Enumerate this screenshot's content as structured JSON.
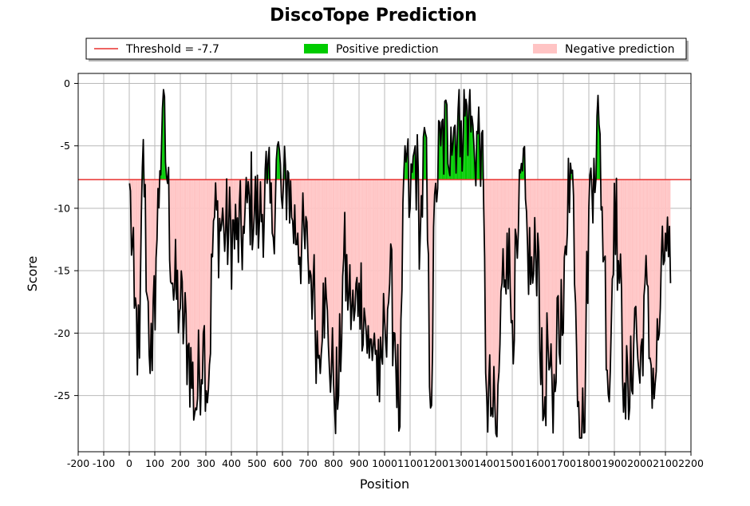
{
  "chart_data": {
    "type": "line",
    "title": "DiscoTope Prediction",
    "xlabel": "Position",
    "ylabel": "Score",
    "xlim": [
      -200,
      2200
    ],
    "ylim": [
      -29.5,
      0.8
    ],
    "xticks": [
      -200,
      -100,
      0,
      100,
      200,
      300,
      400,
      500,
      600,
      700,
      800,
      900,
      1000,
      1100,
      1200,
      1300,
      1400,
      1500,
      1600,
      1700,
      1800,
      1900,
      2000,
      2100,
      2200
    ],
    "yticks": [
      0,
      -5,
      -10,
      -15,
      -20,
      -25
    ],
    "threshold": -7.7,
    "grid": true,
    "legend_placement": "top",
    "legend": [
      {
        "label": "Threshold = -7.7",
        "kind": "line",
        "color": "#e8302f"
      },
      {
        "label": "Positive prediction",
        "kind": "patch",
        "color": "#00cc00"
      },
      {
        "label": "Negative prediction",
        "kind": "patch",
        "color": "#ffc4c4"
      }
    ],
    "x_start": 1,
    "x_end": 2120,
    "series": [
      {
        "line_color": "#000000",
        "keypoints": [
          [
            1,
            -8
          ],
          [
            20,
            -18
          ],
          [
            40,
            -22
          ],
          [
            55,
            -4.5
          ],
          [
            70,
            -17
          ],
          [
            90,
            -23
          ],
          [
            105,
            -14
          ],
          [
            120,
            -7
          ],
          [
            130,
            -2
          ],
          [
            150,
            -8
          ],
          [
            170,
            -16
          ],
          [
            200,
            -18
          ],
          [
            230,
            -21
          ],
          [
            260,
            -26
          ],
          [
            290,
            -20
          ],
          [
            310,
            -24.5
          ],
          [
            330,
            -11
          ],
          [
            370,
            -11.5
          ],
          [
            420,
            -12.5
          ],
          [
            450,
            -12
          ],
          [
            470,
            -9
          ],
          [
            510,
            -11
          ],
          [
            540,
            -8
          ],
          [
            560,
            -12
          ],
          [
            580,
            -5
          ],
          [
            600,
            -10
          ],
          [
            620,
            -7
          ],
          [
            640,
            -11
          ],
          [
            660,
            -12
          ],
          [
            700,
            -14
          ],
          [
            720,
            -16
          ],
          [
            740,
            -22
          ],
          [
            760,
            -16
          ],
          [
            780,
            -21
          ],
          [
            800,
            -24
          ],
          [
            820,
            -25
          ],
          [
            840,
            -14
          ],
          [
            860,
            -17
          ],
          [
            880,
            -19
          ],
          [
            900,
            -16
          ],
          [
            920,
            -18
          ],
          [
            940,
            -22
          ],
          [
            960,
            -20
          ],
          [
            980,
            -25.5
          ],
          [
            1000,
            -19
          ],
          [
            1020,
            -16
          ],
          [
            1040,
            -20
          ],
          [
            1060,
            -27.5
          ],
          [
            1080,
            -5
          ],
          [
            1100,
            -10
          ],
          [
            1120,
            -5
          ],
          [
            1140,
            -12
          ],
          [
            1160,
            -4
          ],
          [
            1180,
            -26
          ],
          [
            1200,
            -8
          ],
          [
            1220,
            -5
          ],
          [
            1260,
            -3.5
          ],
          [
            1300,
            -3
          ],
          [
            1330,
            -2.2
          ],
          [
            1350,
            -5
          ],
          [
            1380,
            -4
          ],
          [
            1400,
            -25
          ],
          [
            1420,
            -26
          ],
          [
            1440,
            -28.3
          ],
          [
            1460,
            -16
          ],
          [
            1480,
            -12
          ],
          [
            1500,
            -19
          ],
          [
            1520,
            -14
          ],
          [
            1540,
            -7
          ],
          [
            1560,
            -13
          ],
          [
            1580,
            -16
          ],
          [
            1600,
            -12
          ],
          [
            1620,
            -27
          ],
          [
            1640,
            -21
          ],
          [
            1660,
            -28
          ],
          [
            1680,
            -17
          ],
          [
            1700,
            -20
          ],
          [
            1720,
            -6
          ],
          [
            1740,
            -9
          ],
          [
            1760,
            -25.5
          ],
          [
            1780,
            -28
          ],
          [
            1800,
            -10
          ],
          [
            1820,
            -6
          ],
          [
            1840,
            -3.3
          ],
          [
            1860,
            -14
          ],
          [
            1880,
            -25.5
          ],
          [
            1900,
            -8
          ],
          [
            1920,
            -16
          ],
          [
            1940,
            -24
          ],
          [
            1960,
            -26
          ],
          [
            1980,
            -18
          ],
          [
            2000,
            -24
          ],
          [
            2020,
            -16
          ],
          [
            2040,
            -22
          ],
          [
            2060,
            -24
          ],
          [
            2080,
            -18
          ],
          [
            2100,
            -12
          ],
          [
            2120,
            -16
          ]
        ]
      }
    ]
  }
}
